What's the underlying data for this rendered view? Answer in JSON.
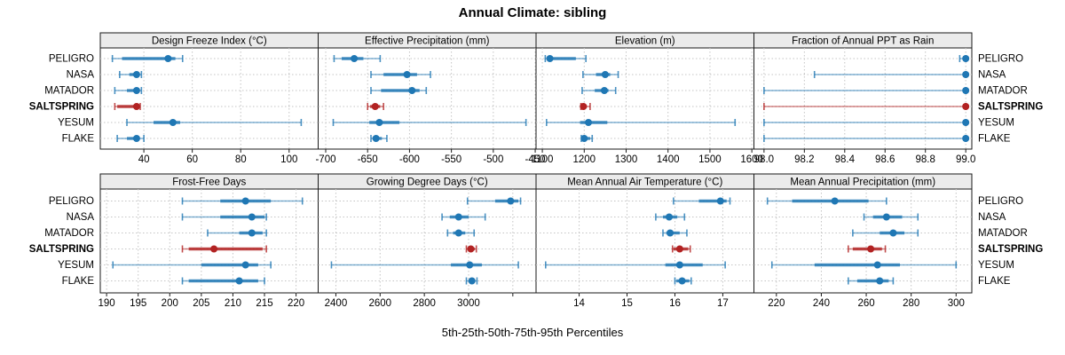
{
  "title": "Annual Climate: sibling",
  "footer": "5th-25th-50th-75th-95th Percentiles",
  "colors": {
    "series": "#1f77b4",
    "highlight": "#b22222",
    "grid": "#c4c4c4",
    "strip_bg": "#ebebeb",
    "border": "#1a1a1a"
  },
  "chart_data": {
    "type": "scatter",
    "variant": "trellis dot plot with 5th-25th-50th-75th-95th percentile intervals, 2 rows x 4 columns",
    "percentile_labels": [
      "5th",
      "25th",
      "50th",
      "75th",
      "95th"
    ],
    "sites": [
      "PELIGRO",
      "NASA",
      "MATADOR",
      "SALTSPRING",
      "YESUM",
      "FLAKE"
    ],
    "highlight_site": "SALTSPRING",
    "legend_position": "none",
    "grid": true,
    "panels": [
      {
        "id": "design-freeze-index",
        "title": "Design Freeze Index (°C)",
        "row": 0,
        "col": 0,
        "xlim": [
          22,
          112
        ],
        "ticks": [
          40,
          60,
          80,
          100
        ],
        "tick_labels": [
          "40",
          "60",
          "80",
          "100"
        ],
        "values": [
          [
            27,
            31,
            50,
            53,
            56
          ],
          [
            30,
            34,
            37,
            38,
            39
          ],
          [
            28,
            33,
            37,
            38,
            39
          ],
          [
            28,
            29,
            37,
            38,
            38.5
          ],
          [
            33,
            44,
            52,
            55,
            105
          ],
          [
            29,
            33,
            37,
            38,
            40
          ]
        ]
      },
      {
        "id": "effective-precipitation",
        "title": "Effective Precipitation (mm)",
        "row": 0,
        "col": 1,
        "xlim": [
          -709,
          -449
        ],
        "ticks": [
          -700,
          -650,
          -600,
          -550,
          -500,
          -450
        ],
        "tick_labels": [
          "-700",
          "-650",
          "-600",
          "-550",
          "-500",
          "-450"
        ],
        "values": [
          [
            -690,
            -681,
            -666,
            -655,
            -635
          ],
          [
            -646,
            -631,
            -603,
            -591,
            -575
          ],
          [
            -646,
            -634,
            -597,
            -588,
            -580
          ],
          [
            -650,
            -647,
            -641,
            -635,
            -631
          ],
          [
            -691,
            -648,
            -636,
            -612,
            -461
          ],
          [
            -646,
            -644,
            -640,
            -633,
            -627
          ]
        ]
      },
      {
        "id": "elevation",
        "title": "Elevation (m)",
        "row": 0,
        "col": 2,
        "xlim": [
          1085,
          1605
        ],
        "ticks": [
          1100,
          1200,
          1300,
          1400,
          1500,
          1600
        ],
        "tick_labels": [
          "1100",
          "1200",
          "1300",
          "1400",
          "1500",
          "1600"
        ],
        "values": [
          [
            1107,
            1112,
            1118,
            1180,
            1204
          ],
          [
            1197,
            1228,
            1250,
            1262,
            1281
          ],
          [
            1195,
            1225,
            1248,
            1258,
            1275
          ],
          [
            1192,
            1194,
            1198,
            1206,
            1214
          ],
          [
            1110,
            1190,
            1210,
            1255,
            1560
          ],
          [
            1193,
            1195,
            1200,
            1214,
            1219
          ]
        ]
      },
      {
        "id": "fraction-ppt-as-rain",
        "title": "Fraction of Annual PPT as Rain",
        "row": 0,
        "col": 3,
        "xlim": [
          97.95,
          99.03
        ],
        "ticks": [
          98.0,
          98.2,
          98.4,
          98.6,
          98.8,
          99.0
        ],
        "tick_labels": [
          "98.0",
          "98.2",
          "98.4",
          "98.6",
          "98.8",
          "99.0"
        ],
        "values": [
          [
            98.97,
            98.99,
            99.0,
            99.0,
            99.0
          ],
          [
            98.25,
            98.99,
            99.0,
            99.0,
            99.0
          ],
          [
            98.0,
            98.99,
            99.0,
            99.0,
            99.0
          ],
          [
            98.0,
            98.99,
            99.0,
            99.0,
            99.0
          ],
          [
            98.0,
            98.99,
            99.0,
            99.0,
            99.0
          ],
          [
            98.0,
            98.99,
            99.0,
            99.0,
            99.0
          ]
        ]
      },
      {
        "id": "frost-free-days",
        "title": "Frost-Free Days",
        "row": 1,
        "col": 0,
        "xlim": [
          189,
          223.5
        ],
        "ticks": [
          190,
          195,
          200,
          205,
          210,
          215,
          220
        ],
        "tick_labels": [
          "190",
          "195",
          "200",
          "205",
          "210",
          "215",
          "220"
        ],
        "values": [
          [
            202,
            208,
            212,
            216,
            221
          ],
          [
            202,
            208,
            213,
            215,
            215.3
          ],
          [
            206,
            211,
            213,
            214.7,
            215.3
          ],
          [
            202,
            203,
            207,
            214.7,
            215.3
          ],
          [
            191,
            205,
            212,
            214,
            216
          ],
          [
            202,
            203,
            211,
            214,
            215
          ]
        ]
      },
      {
        "id": "growing-degree-days",
        "title": "Growing Degree Days (°C)",
        "row": 1,
        "col": 1,
        "xlim": [
          2320,
          3305
        ],
        "ticks": [
          2400,
          2600,
          2800,
          3000,
          3200
        ],
        "tick_labels": [
          "2400",
          "2600",
          "2800",
          "3000",
          ""
        ],
        "values": [
          [
            2995,
            3120,
            3190,
            3225,
            3235
          ],
          [
            2880,
            2915,
            2955,
            3000,
            3075
          ],
          [
            2905,
            2930,
            2955,
            2985,
            3025
          ],
          [
            2990,
            2995,
            3010,
            3028,
            3035
          ],
          [
            2380,
            2920,
            3005,
            3060,
            3225
          ],
          [
            2990,
            3000,
            3015,
            3030,
            3038
          ]
        ]
      },
      {
        "id": "mean-annual-air-temperature",
        "title": "Mean Annual Air Temperature (°C)",
        "row": 1,
        "col": 2,
        "xlim": [
          13.1,
          17.65
        ],
        "ticks": [
          14,
          15,
          16,
          17
        ],
        "tick_labels": [
          "14",
          "15",
          "16",
          "17"
        ],
        "values": [
          [
            15.97,
            16.5,
            16.95,
            17.08,
            17.15
          ],
          [
            15.6,
            15.75,
            15.88,
            16.05,
            16.2
          ],
          [
            15.75,
            15.82,
            15.9,
            16.1,
            16.25
          ],
          [
            15.95,
            15.97,
            16.1,
            16.28,
            16.32
          ],
          [
            13.3,
            15.8,
            16.1,
            16.58,
            17.05
          ],
          [
            16.0,
            16.03,
            16.15,
            16.3,
            16.34
          ]
        ]
      },
      {
        "id": "mean-annual-precipitation",
        "title": "Mean Annual Precipitation (mm)",
        "row": 1,
        "col": 3,
        "xlim": [
          210,
          307
        ],
        "ticks": [
          220,
          240,
          260,
          280,
          300
        ],
        "tick_labels": [
          "220",
          "240",
          "260",
          "280",
          "300"
        ],
        "values": [
          [
            216,
            227,
            246,
            261,
            269
          ],
          [
            259,
            263,
            269,
            276,
            283
          ],
          [
            254,
            266,
            272,
            277,
            283
          ],
          [
            252,
            254,
            262,
            267,
            268.5
          ],
          [
            218,
            237,
            265,
            275,
            300
          ],
          [
            252,
            256,
            266,
            270,
            272
          ]
        ]
      }
    ]
  }
}
